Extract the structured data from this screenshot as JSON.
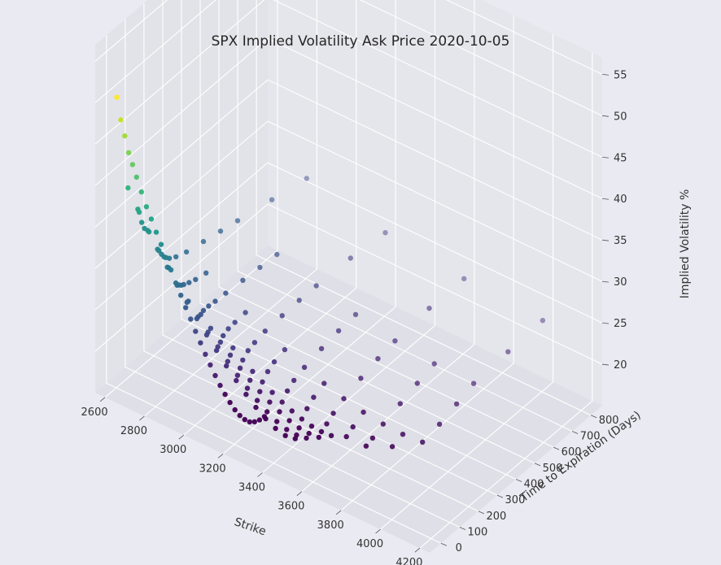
{
  "chart_data": {
    "type": "scatter",
    "title": "SPX Implied Volatility Ask Price 2020-10-05",
    "xlabel": "Strike",
    "ylabel": "Time to Expiration (Days)",
    "zlabel": "Implied Volatility %",
    "x_ticks": [
      "2600",
      "2800",
      "3000",
      "3200",
      "3400",
      "3600",
      "3800",
      "4000",
      "4200"
    ],
    "y_ticks": [
      "0",
      "100",
      "200",
      "300",
      "400",
      "500",
      "600",
      "700",
      "800"
    ],
    "z_ticks": [
      "20",
      "25",
      "30",
      "35",
      "40",
      "45",
      "50",
      "55"
    ],
    "xlim": [
      2550,
      4250
    ],
    "ylim": [
      -60,
      860
    ],
    "zlim": [
      15,
      57
    ],
    "grid": true,
    "colormap": "viridis",
    "color_range": [
      20,
      50
    ],
    "points": [
      [
        2600,
        3,
        50.0
      ],
      [
        2620,
        3,
        47.5
      ],
      [
        2640,
        3,
        45.8
      ],
      [
        2660,
        3,
        44.0
      ],
      [
        2680,
        3,
        42.8
      ],
      [
        2700,
        3,
        41.5
      ],
      [
        2725,
        3,
        40.0
      ],
      [
        2750,
        3,
        38.5
      ],
      [
        2775,
        3,
        37.3
      ],
      [
        2800,
        3,
        36.0
      ],
      [
        2825,
        3,
        34.8
      ],
      [
        2850,
        3,
        33.5
      ],
      [
        2875,
        3,
        32.3
      ],
      [
        2900,
        3,
        31.0
      ],
      [
        2925,
        3,
        29.8
      ],
      [
        2950,
        3,
        28.6
      ],
      [
        2975,
        3,
        27.5
      ],
      [
        3000,
        3,
        26.3
      ],
      [
        3025,
        3,
        25.2
      ],
      [
        3050,
        3,
        24.1
      ],
      [
        3075,
        3,
        23.1
      ],
      [
        3100,
        3,
        22.1
      ],
      [
        3125,
        3,
        21.2
      ],
      [
        3150,
        3,
        20.4
      ],
      [
        3175,
        3,
        19.7
      ],
      [
        3200,
        3,
        19.1
      ],
      [
        3225,
        3,
        18.7
      ],
      [
        3250,
        3,
        18.5
      ],
      [
        3275,
        3,
        18.5
      ],
      [
        3300,
        3,
        18.8
      ],
      [
        3325,
        3,
        19.3
      ],
      [
        3350,
        3,
        20.0
      ],
      [
        2650,
        10,
        39.5
      ],
      [
        2700,
        10,
        37.5
      ],
      [
        2750,
        10,
        35.5
      ],
      [
        2800,
        10,
        33.8
      ],
      [
        2850,
        10,
        32.2
      ],
      [
        2900,
        10,
        30.6
      ],
      [
        2950,
        10,
        29.1
      ],
      [
        3000,
        10,
        27.7
      ],
      [
        3050,
        10,
        26.3
      ],
      [
        3100,
        10,
        25.0
      ],
      [
        3150,
        10,
        23.7
      ],
      [
        3200,
        10,
        22.5
      ],
      [
        3250,
        10,
        21.4
      ],
      [
        3300,
        10,
        20.4
      ],
      [
        3350,
        10,
        19.6
      ],
      [
        3400,
        10,
        19.0
      ],
      [
        3450,
        10,
        18.7
      ],
      [
        3500,
        10,
        18.9
      ],
      [
        2700,
        17,
        37.0
      ],
      [
        2750,
        17,
        35.2
      ],
      [
        2800,
        17,
        33.5
      ],
      [
        2850,
        17,
        32.0
      ],
      [
        2900,
        17,
        30.5
      ],
      [
        2950,
        17,
        29.1
      ],
      [
        3000,
        17,
        27.8
      ],
      [
        3050,
        17,
        26.5
      ],
      [
        3100,
        17,
        25.3
      ],
      [
        3150,
        17,
        24.1
      ],
      [
        3200,
        17,
        23.0
      ],
      [
        3250,
        17,
        22.0
      ],
      [
        3300,
        17,
        21.1
      ],
      [
        3350,
        17,
        20.3
      ],
      [
        3400,
        17,
        19.7
      ],
      [
        3450,
        17,
        19.3
      ],
      [
        3500,
        17,
        19.2
      ],
      [
        3550,
        17,
        19.4
      ],
      [
        2700,
        31,
        35.5
      ],
      [
        2800,
        31,
        32.8
      ],
      [
        2900,
        31,
        30.2
      ],
      [
        3000,
        31,
        27.8
      ],
      [
        3050,
        31,
        26.7
      ],
      [
        3100,
        31,
        25.6
      ],
      [
        3150,
        31,
        24.6
      ],
      [
        3200,
        31,
        23.6
      ],
      [
        3250,
        31,
        22.7
      ],
      [
        3300,
        31,
        21.9
      ],
      [
        3350,
        31,
        21.2
      ],
      [
        3400,
        31,
        20.6
      ],
      [
        3450,
        31,
        20.1
      ],
      [
        3500,
        31,
        19.8
      ],
      [
        3550,
        31,
        19.7
      ],
      [
        3600,
        31,
        19.8
      ],
      [
        2700,
        45,
        34.5
      ],
      [
        2800,
        45,
        32.2
      ],
      [
        2900,
        45,
        30.0
      ],
      [
        3000,
        45,
        28.0
      ],
      [
        3100,
        45,
        26.1
      ],
      [
        3150,
        45,
        25.2
      ],
      [
        3200,
        45,
        24.3
      ],
      [
        3250,
        45,
        23.5
      ],
      [
        3300,
        45,
        22.8
      ],
      [
        3350,
        45,
        22.1
      ],
      [
        3400,
        45,
        21.5
      ],
      [
        3450,
        45,
        21.0
      ],
      [
        3500,
        45,
        20.6
      ],
      [
        3550,
        45,
        20.3
      ],
      [
        3600,
        45,
        20.2
      ],
      [
        3650,
        45,
        20.3
      ],
      [
        2800,
        73,
        31.5
      ],
      [
        2900,
        73,
        29.7
      ],
      [
        3000,
        73,
        28.0
      ],
      [
        3100,
        73,
        26.4
      ],
      [
        3200,
        73,
        24.9
      ],
      [
        3300,
        73,
        23.5
      ],
      [
        3400,
        73,
        22.3
      ],
      [
        3500,
        73,
        21.3
      ],
      [
        3600,
        73,
        20.6
      ],
      [
        3700,
        73,
        20.2
      ],
      [
        3800,
        73,
        20.2
      ],
      [
        2800,
        108,
        31.0
      ],
      [
        2900,
        108,
        29.4
      ],
      [
        3000,
        108,
        27.9
      ],
      [
        3100,
        108,
        26.5
      ],
      [
        3200,
        108,
        25.2
      ],
      [
        3300,
        108,
        24.0
      ],
      [
        3400,
        108,
        22.9
      ],
      [
        3500,
        108,
        22.0
      ],
      [
        3600,
        108,
        21.2
      ],
      [
        3700,
        108,
        20.7
      ],
      [
        3800,
        108,
        20.5
      ],
      [
        3900,
        108,
        20.6
      ],
      [
        2800,
        164,
        30.5
      ],
      [
        2900,
        164,
        29.1
      ],
      [
        3000,
        164,
        27.8
      ],
      [
        3100,
        164,
        26.6
      ],
      [
        3200,
        164,
        25.5
      ],
      [
        3300,
        164,
        24.4
      ],
      [
        3400,
        164,
        23.4
      ],
      [
        3500,
        164,
        22.6
      ],
      [
        3600,
        164,
        21.9
      ],
      [
        3700,
        164,
        21.4
      ],
      [
        3800,
        164,
        21.1
      ],
      [
        3900,
        164,
        21.0
      ],
      [
        4000,
        164,
        21.2
      ],
      [
        2800,
        255,
        30.0
      ],
      [
        3000,
        255,
        27.6
      ],
      [
        3200,
        255,
        25.6
      ],
      [
        3400,
        255,
        23.9
      ],
      [
        3600,
        255,
        22.6
      ],
      [
        3800,
        255,
        21.8
      ],
      [
        4000,
        255,
        21.6
      ],
      [
        2800,
        346,
        29.5
      ],
      [
        3000,
        346,
        27.4
      ],
      [
        3200,
        346,
        25.7
      ],
      [
        3400,
        346,
        24.3
      ],
      [
        3600,
        346,
        23.2
      ],
      [
        3800,
        346,
        22.5
      ],
      [
        4000,
        346,
        22.3
      ],
      [
        2800,
        437,
        29.0
      ],
      [
        3000,
        437,
        27.2
      ],
      [
        3200,
        437,
        25.7
      ],
      [
        3400,
        437,
        24.5
      ],
      [
        3600,
        437,
        23.6
      ],
      [
        3800,
        437,
        23.1
      ],
      [
        4000,
        437,
        23.0
      ],
      [
        2800,
        620,
        28.0
      ],
      [
        3200,
        620,
        25.5
      ],
      [
        3600,
        620,
        24.0
      ],
      [
        4000,
        620,
        23.3
      ],
      [
        2800,
        805,
        27.0
      ],
      [
        3200,
        805,
        25.0
      ],
      [
        3600,
        805,
        24.0
      ],
      [
        4000,
        805,
        23.5
      ]
    ]
  }
}
